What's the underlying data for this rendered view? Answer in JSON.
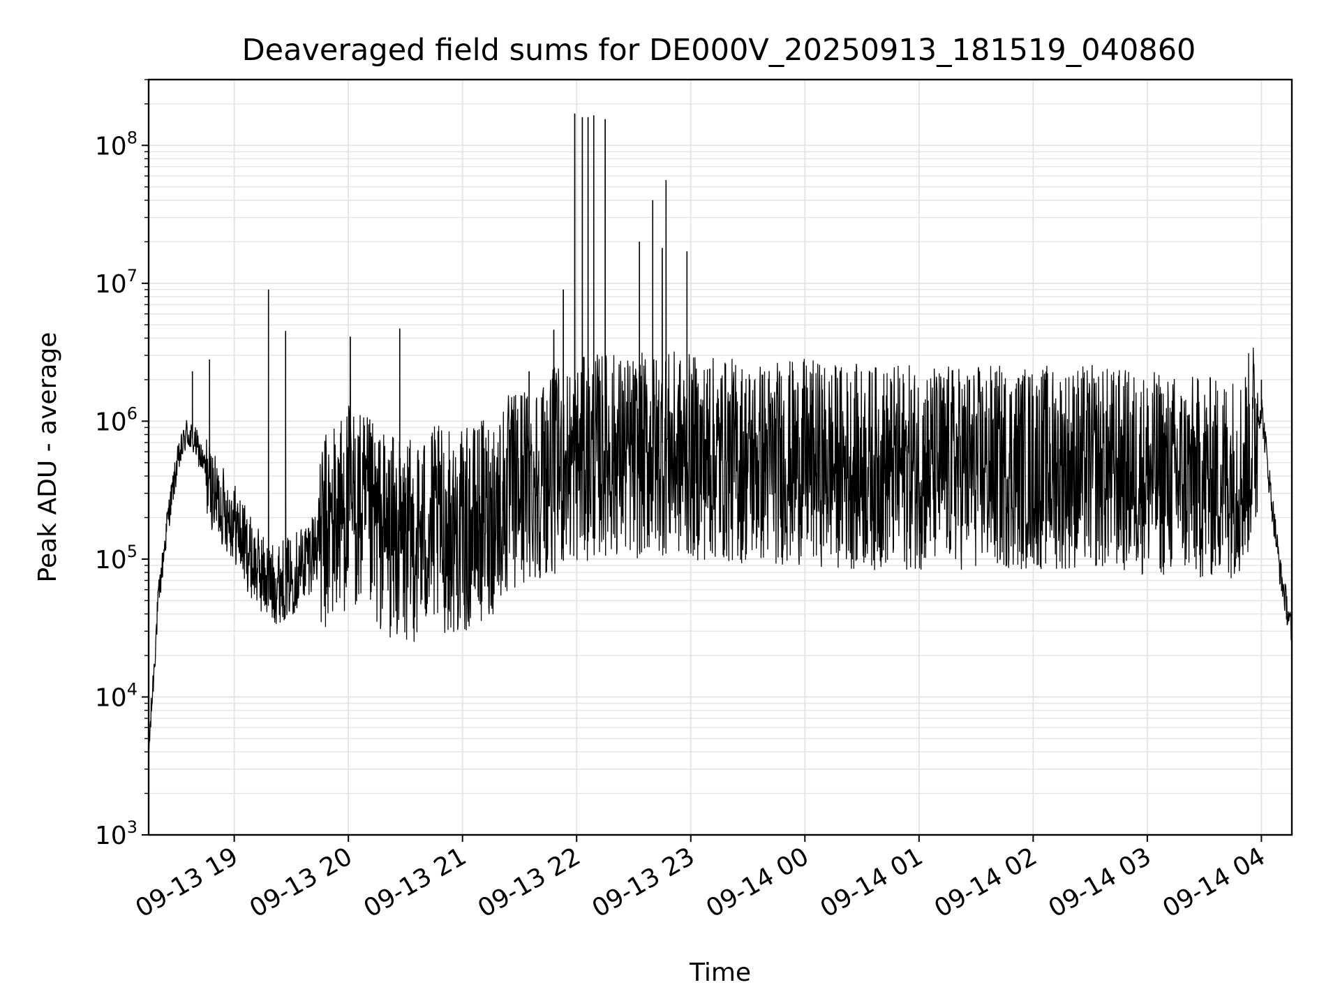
{
  "chart_data": {
    "type": "line",
    "title": "Deaveraged field sums for DE000V_20250913_181519_040860",
    "xlabel": "Time",
    "ylabel": "Peak ADU - average",
    "yscale": "log",
    "ylim": [
      1000,
      300000000
    ],
    "xlim": [
      "2025-09-13 18:15",
      "2025-09-14 04:16"
    ],
    "grid": true,
    "line_color": "#000000",
    "grid_color": "#e3e3e3",
    "x_ticks": [
      "09-13 19",
      "09-13 20",
      "09-13 21",
      "09-13 22",
      "09-13 23",
      "09-14 00",
      "09-14 01",
      "09-14 02",
      "09-14 03",
      "09-14 04"
    ],
    "x_tick_times": [
      "2025-09-13 19:00",
      "2025-09-13 20:00",
      "2025-09-13 21:00",
      "2025-09-13 22:00",
      "2025-09-13 23:00",
      "2025-09-14 00:00",
      "2025-09-14 01:00",
      "2025-09-14 02:00",
      "2025-09-14 03:00",
      "2025-09-14 04:00"
    ],
    "y_ticks": [
      {
        "value": 1000,
        "base": "10",
        "exp": "3"
      },
      {
        "value": 10000,
        "base": "10",
        "exp": "4"
      },
      {
        "value": 100000,
        "base": "10",
        "exp": "5"
      },
      {
        "value": 1000000,
        "base": "10",
        "exp": "6"
      },
      {
        "value": 10000000,
        "base": "10",
        "exp": "7"
      },
      {
        "value": 100000000,
        "base": "10",
        "exp": "8"
      }
    ],
    "series": [
      {
        "x": [
          "2025-09-13 18:15",
          "2025-09-13 18:20",
          "2025-09-13 18:25",
          "2025-09-13 18:30",
          "2025-09-13 18:35",
          "2025-09-13 18:40",
          "2025-09-13 18:45",
          "2025-09-13 18:50",
          "2025-09-13 18:55",
          "2025-09-13 19:00",
          "2025-09-13 19:10",
          "2025-09-13 19:20",
          "2025-09-13 19:30",
          "2025-09-13 19:40",
          "2025-09-13 19:50",
          "2025-09-13 20:00",
          "2025-09-13 20:15",
          "2025-09-13 20:30",
          "2025-09-13 20:45",
          "2025-09-13 21:00",
          "2025-09-13 21:15",
          "2025-09-13 21:30",
          "2025-09-13 21:45",
          "2025-09-13 22:00",
          "2025-09-13 22:15",
          "2025-09-13 22:30",
          "2025-09-13 22:45",
          "2025-09-13 23:00",
          "2025-09-13 23:30",
          "2025-09-14 00:00",
          "2025-09-14 00:30",
          "2025-09-14 01:00",
          "2025-09-14 01:30",
          "2025-09-14 02:00",
          "2025-09-14 02:30",
          "2025-09-14 03:00",
          "2025-09-14 03:30",
          "2025-09-14 03:50",
          "2025-09-14 04:00",
          "2025-09-14 04:05",
          "2025-09-14 04:10",
          "2025-09-14 04:16"
        ],
        "base": [
          4000,
          50000,
          200000,
          500000,
          850000,
          700000,
          450000,
          300000,
          250000,
          200000,
          100000,
          70000,
          80000,
          120000,
          200000,
          300000,
          200000,
          150000,
          200000,
          180000,
          250000,
          400000,
          500000,
          600000,
          700000,
          650000,
          700000,
          650000,
          600000,
          600000,
          550000,
          550000,
          550000,
          550000,
          550000,
          500000,
          450000,
          500000,
          1300000,
          300000,
          80000,
          30000
        ],
        "spikes": [
          {
            "x": "2025-09-13 18:38",
            "y": 2300000
          },
          {
            "x": "2025-09-13 18:47",
            "y": 2800000
          },
          {
            "x": "2025-09-13 19:18",
            "y": 9000000
          },
          {
            "x": "2025-09-13 19:27",
            "y": 4500000
          },
          {
            "x": "2025-09-13 20:01",
            "y": 4100000
          },
          {
            "x": "2025-09-13 20:27",
            "y": 4700000
          },
          {
            "x": "2025-09-13 21:35",
            "y": 2300000
          },
          {
            "x": "2025-09-13 21:48",
            "y": 4600000
          },
          {
            "x": "2025-09-13 21:53",
            "y": 9000000
          },
          {
            "x": "2025-09-13 21:59",
            "y": 170000000
          },
          {
            "x": "2025-09-13 22:03",
            "y": 160000000
          },
          {
            "x": "2025-09-13 22:06",
            "y": 160000000
          },
          {
            "x": "2025-09-13 22:09",
            "y": 165000000
          },
          {
            "x": "2025-09-13 22:15",
            "y": 155000000
          },
          {
            "x": "2025-09-13 22:33",
            "y": 20000000
          },
          {
            "x": "2025-09-13 22:40",
            "y": 40000000
          },
          {
            "x": "2025-09-13 22:45",
            "y": 18000000
          },
          {
            "x": "2025-09-13 22:47",
            "y": 56000000
          },
          {
            "x": "2025-09-13 22:58",
            "y": 17000000
          },
          {
            "x": "2025-09-13 23:10",
            "y": 2400000
          },
          {
            "x": "2025-09-14 04:00",
            "y": 2000000
          }
        ]
      }
    ]
  }
}
